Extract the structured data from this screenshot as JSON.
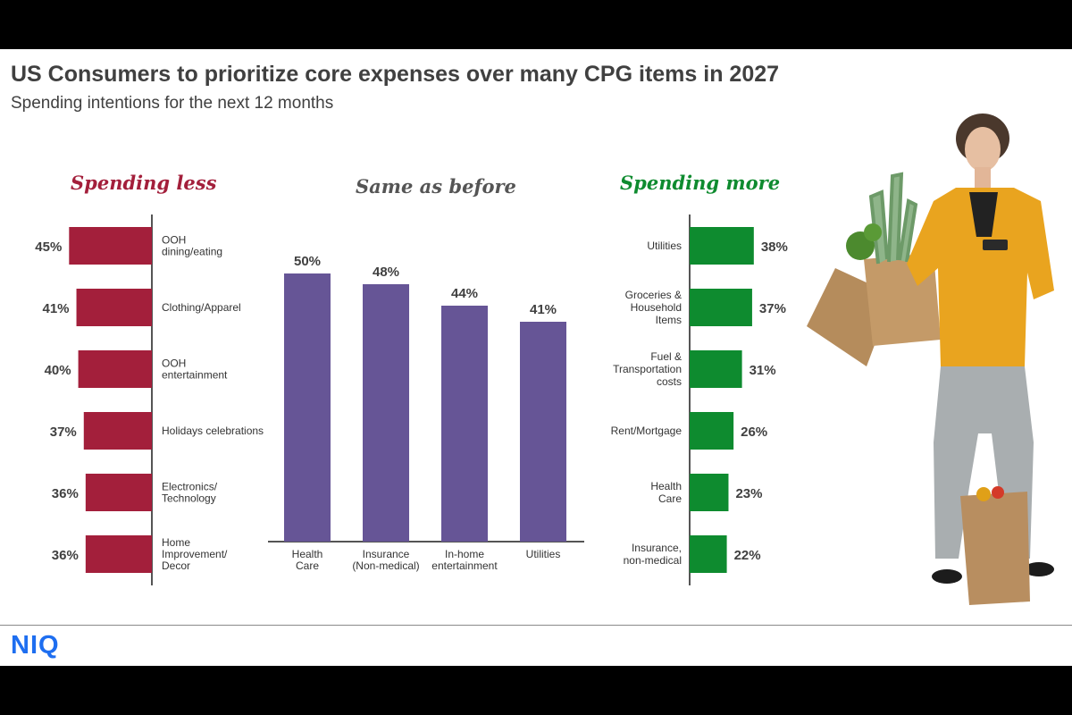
{
  "title": "US Consumers to prioritize core expenses over many CPG items in 2027",
  "subtitle": "Spending intentions for the next 12 months",
  "logo_text": "NIQ",
  "colors": {
    "less": "#a31f3b",
    "same": "#665596",
    "more": "#0e8b2f",
    "text": "#404040"
  },
  "chart_data": [
    {
      "type": "bar",
      "orientation": "horizontal",
      "title": "Spending less",
      "categories": [
        [
          "OOH",
          "dining/eating"
        ],
        [
          "Clothing/Apparel"
        ],
        [
          "OOH",
          "entertainment"
        ],
        [
          "Holidays celebrations"
        ],
        [
          "Electronics/",
          "Technology"
        ],
        [
          "Home",
          "Improvement/",
          "Decor"
        ]
      ],
      "values": [
        45,
        41,
        40,
        37,
        36,
        36
      ],
      "labels": [
        "45%",
        "41%",
        "40%",
        "37%",
        "36%",
        "36%"
      ],
      "unit": "%"
    },
    {
      "type": "bar",
      "orientation": "vertical",
      "title": "Same as before",
      "categories": [
        [
          "Health",
          "Care"
        ],
        [
          "Insurance",
          "(Non-medical)"
        ],
        [
          "In-home",
          "entertainment"
        ],
        [
          "Utilities"
        ]
      ],
      "values": [
        50,
        48,
        44,
        41
      ],
      "labels": [
        "50%",
        "48%",
        "44%",
        "41%"
      ],
      "unit": "%"
    },
    {
      "type": "bar",
      "orientation": "horizontal",
      "title": "Spending more",
      "categories": [
        [
          "Utilities"
        ],
        [
          "Groceries &",
          "Household",
          "Items"
        ],
        [
          "Fuel &",
          "Transportation",
          "costs"
        ],
        [
          "Rent/Mortgage"
        ],
        [
          "Health",
          "Care"
        ],
        [
          "Insurance,",
          "non-medical"
        ]
      ],
      "values": [
        38,
        37,
        31,
        26,
        23,
        22
      ],
      "labels": [
        "38%",
        "37%",
        "31%",
        "26%",
        "23%",
        "22%"
      ],
      "unit": "%"
    }
  ]
}
